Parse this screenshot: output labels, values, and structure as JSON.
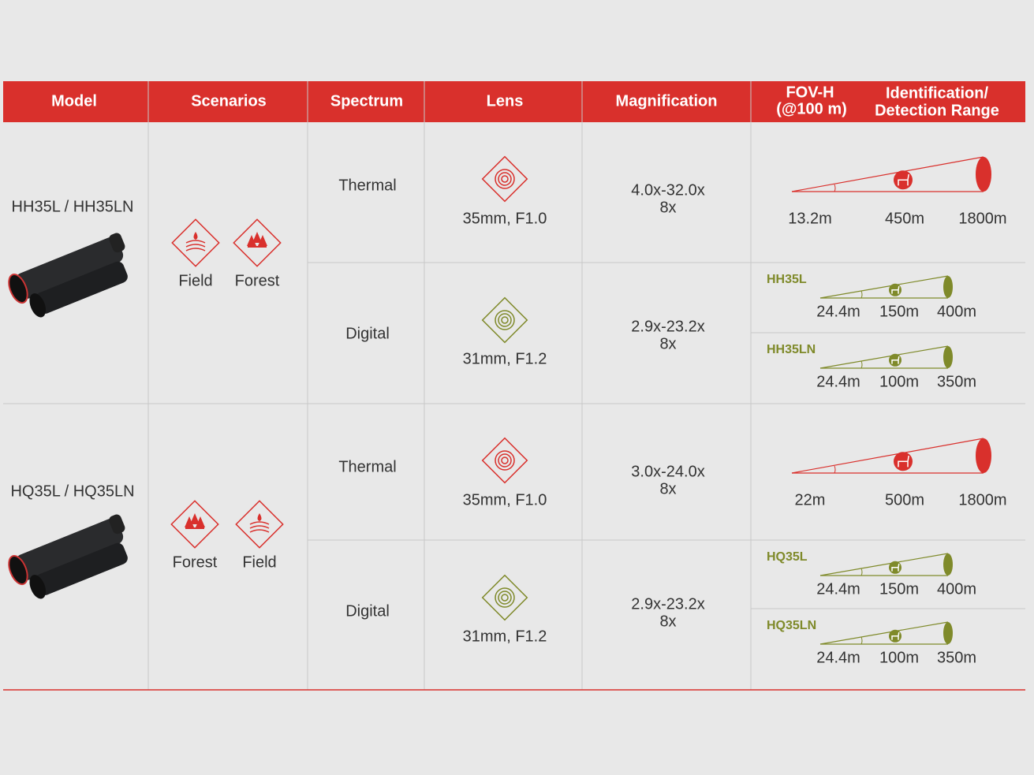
{
  "header": {
    "model": "Model",
    "scenarios": "Scenarios",
    "spectrum": "Spectrum",
    "lens": "Lens",
    "magnification": "Magnification",
    "fov": [
      "FOV-H",
      "(@100 m)"
    ],
    "range": [
      "Identification/",
      "Detection Range"
    ]
  },
  "models": [
    {
      "name": "HH35L / HH35LN",
      "scenarios": [
        "Field",
        "Forest"
      ],
      "spectra": [
        {
          "name": "Thermal",
          "lens": "35mm, F1.0",
          "magnification": [
            "4.0x-32.0x",
            "8x"
          ],
          "ranges": [
            {
              "values": [
                "13.2m",
                "450m",
                "1800m"
              ]
            }
          ]
        },
        {
          "name": "Digital",
          "lens": "31mm, F1.2",
          "magnification": [
            "2.9x-23.2x",
            "8x"
          ],
          "ranges": [
            {
              "model": "HH35L",
              "values": [
                "24.4m",
                "150m",
                "400m"
              ]
            },
            {
              "model": "HH35LN",
              "values": [
                "24.4m",
                "100m",
                "350m"
              ]
            }
          ]
        }
      ]
    },
    {
      "name": "HQ35L / HQ35LN",
      "scenarios": [
        "Forest",
        "Field"
      ],
      "spectra": [
        {
          "name": "Thermal",
          "lens": "35mm, F1.0",
          "magnification": [
            "3.0x-24.0x",
            "8x"
          ],
          "ranges": [
            {
              "values": [
                "22m",
                "500m",
                "1800m"
              ]
            }
          ]
        },
        {
          "name": "Digital",
          "lens": "31mm, F1.2",
          "magnification": [
            "2.9x-23.2x",
            "8x"
          ],
          "ranges": [
            {
              "model": "HQ35L",
              "values": [
                "24.4m",
                "150m",
                "400m"
              ]
            },
            {
              "model": "HQ35LN",
              "values": [
                "24.4m",
                "100m",
                "350m"
              ]
            }
          ]
        }
      ]
    }
  ]
}
